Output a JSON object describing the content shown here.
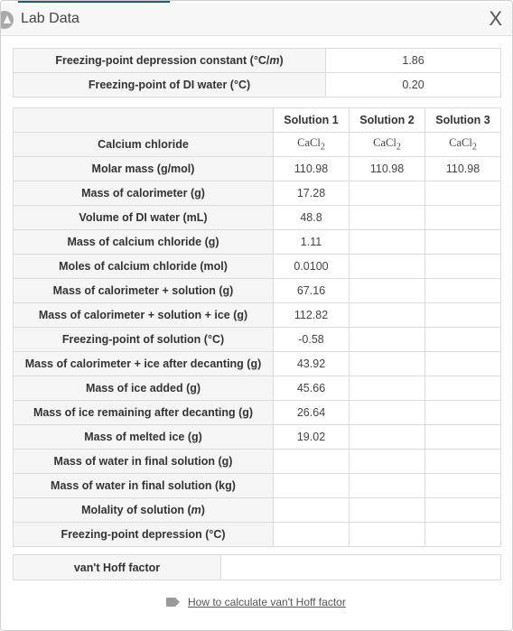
{
  "window": {
    "title": "Lab Data",
    "close_label": "X"
  },
  "constants": [
    {
      "label": "Freezing-point depression constant (°C/",
      "unit_m": "m",
      "label_end": ")",
      "value": "1.86"
    },
    {
      "label": "Freezing-point of DI water (°C)",
      "value": "0.20"
    }
  ],
  "table": {
    "headers": [
      "Solution 1",
      "Solution 2",
      "Solution 3"
    ],
    "formula_row": {
      "label": "Calcium chloride",
      "formula_base": "CaCl",
      "formula_sub": "2"
    },
    "rows": [
      {
        "label": "Molar mass (g/mol)",
        "values": [
          "110.98",
          "110.98",
          "110.98"
        ]
      },
      {
        "label": "Mass of calorimeter (g)",
        "values": [
          "17.28",
          "",
          ""
        ]
      },
      {
        "label": "Volume of DI water (mL)",
        "values": [
          "48.8",
          "",
          ""
        ]
      },
      {
        "label": "Mass of calcium chloride (g)",
        "values": [
          "1.11",
          "",
          ""
        ]
      },
      {
        "label": "Moles of calcium chloride (mol)",
        "values": [
          "0.0100",
          "",
          ""
        ]
      },
      {
        "label": "Mass of calorimeter + solution (g)",
        "values": [
          "67.16",
          "",
          ""
        ]
      },
      {
        "label": "Mass of calorimeter + solution + ice (g)",
        "values": [
          "112.82",
          "",
          ""
        ]
      },
      {
        "label": "Freezing-point of solution (°C)",
        "values": [
          "-0.58",
          "",
          ""
        ]
      },
      {
        "label": "Mass of calorimeter + ice after decanting (g)",
        "values": [
          "43.92",
          "",
          ""
        ]
      },
      {
        "label": "Mass of ice added (g)",
        "values": [
          "45.66",
          "",
          ""
        ]
      },
      {
        "label": "Mass of ice remaining after decanting (g)",
        "values": [
          "26.64",
          "",
          ""
        ]
      },
      {
        "label": "Mass of melted ice (g)",
        "values": [
          "19.02",
          "",
          ""
        ]
      },
      {
        "label": "Mass of water in final solution (g)",
        "values": [
          "",
          "",
          ""
        ]
      },
      {
        "label": "Mass of water in final solution (kg)",
        "values": [
          "",
          "",
          ""
        ]
      },
      {
        "label": "Molality of solution (",
        "unit_m": "m",
        "label_end": ")",
        "values": [
          "",
          "",
          ""
        ]
      },
      {
        "label": "Freezing-point depression (°C)",
        "values": [
          "",
          "",
          ""
        ]
      }
    ]
  },
  "vanthoff": {
    "label": "van't Hoff factor",
    "value": ""
  },
  "help": {
    "icon": "tag-icon",
    "link_text": "How to calculate van't Hoff factor"
  },
  "colors": {
    "accent": "#1f5f63",
    "label_bg": "#f5f5f5",
    "border": "#dcdcdc"
  }
}
